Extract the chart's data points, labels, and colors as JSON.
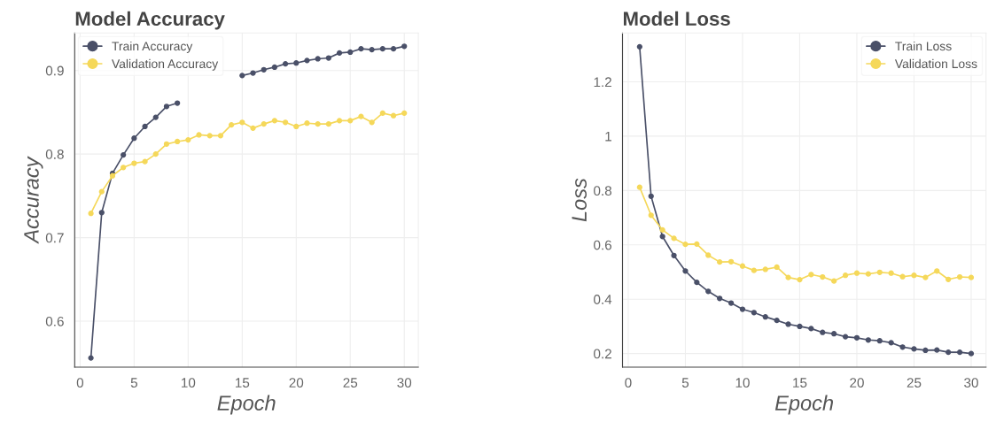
{
  "chart_data": [
    {
      "type": "line",
      "title": "Model Accuracy",
      "xlabel": "Epoch",
      "ylabel": "Accuracy",
      "x": [
        1,
        2,
        3,
        4,
        5,
        6,
        7,
        8,
        9,
        10,
        11,
        12,
        13,
        14,
        15,
        16,
        17,
        18,
        19,
        20,
        21,
        22,
        23,
        24,
        25,
        26,
        27,
        28,
        29,
        30
      ],
      "series": [
        {
          "name": "Train Accuracy",
          "color": "#4a5068",
          "values": [
            0.556,
            0.73,
            0.777,
            0.799,
            0.819,
            0.833,
            0.844,
            0.857,
            0.861,
            null,
            null,
            null,
            null,
            null,
            0.894,
            0.897,
            0.901,
            0.904,
            0.908,
            0.909,
            0.912,
            0.914,
            0.915,
            0.921,
            0.922,
            0.926,
            0.925,
            0.926,
            0.926,
            0.929
          ]
        },
        {
          "name": "Validation Accuracy",
          "color": "#f5d85a",
          "values": [
            0.729,
            0.755,
            0.774,
            0.784,
            0.789,
            0.791,
            0.8,
            0.812,
            0.815,
            0.817,
            0.823,
            0.822,
            0.822,
            0.835,
            0.838,
            0.831,
            0.836,
            0.84,
            0.838,
            0.833,
            0.837,
            0.836,
            0.836,
            0.84,
            0.84,
            0.845,
            0.838,
            0.849,
            0.846,
            0.849
          ]
        }
      ],
      "xlim": [
        -0.5,
        31.3
      ],
      "ylim": [
        0.545,
        0.945
      ],
      "xticks": [
        0,
        5,
        10,
        15,
        20,
        25,
        30
      ],
      "yticks": [
        0.6,
        0.7,
        0.8,
        0.9
      ],
      "grid": true,
      "legend": "top left",
      "marker": "circle",
      "line_style": "solid"
    },
    {
      "type": "line",
      "title": "Model Loss",
      "xlabel": "Epoch",
      "ylabel": "Loss",
      "x": [
        1,
        2,
        3,
        4,
        5,
        6,
        7,
        8,
        9,
        10,
        11,
        12,
        13,
        14,
        15,
        16,
        17,
        18,
        19,
        20,
        21,
        22,
        23,
        24,
        25,
        26,
        27,
        28,
        29,
        30
      ],
      "series": [
        {
          "name": "Train Loss",
          "color": "#4a5068",
          "values": [
            1.329,
            0.779,
            0.631,
            0.561,
            0.504,
            0.462,
            0.429,
            0.403,
            0.386,
            0.363,
            0.351,
            0.335,
            0.322,
            0.308,
            0.3,
            0.292,
            0.278,
            0.273,
            0.262,
            0.258,
            0.25,
            0.247,
            0.24,
            0.224,
            0.217,
            0.212,
            0.213,
            0.205,
            0.205,
            0.2
          ]
        },
        {
          "name": "Validation Loss",
          "color": "#f5d85a",
          "values": [
            0.812,
            0.709,
            0.655,
            0.624,
            0.602,
            0.603,
            0.562,
            0.537,
            0.538,
            0.522,
            0.506,
            0.51,
            0.518,
            0.48,
            0.472,
            0.491,
            0.482,
            0.467,
            0.488,
            0.496,
            0.493,
            0.499,
            0.496,
            0.483,
            0.488,
            0.48,
            0.504,
            0.473,
            0.482,
            0.48
          ]
        }
      ],
      "xlim": [
        -0.5,
        31.3
      ],
      "ylim": [
        0.15,
        1.38
      ],
      "xticks": [
        0,
        5,
        10,
        15,
        20,
        25,
        30
      ],
      "yticks": [
        0.2,
        0.4,
        0.6,
        0.8,
        1,
        1.2
      ],
      "grid": true,
      "legend": "top right",
      "marker": "circle",
      "line_style": "solid"
    }
  ]
}
